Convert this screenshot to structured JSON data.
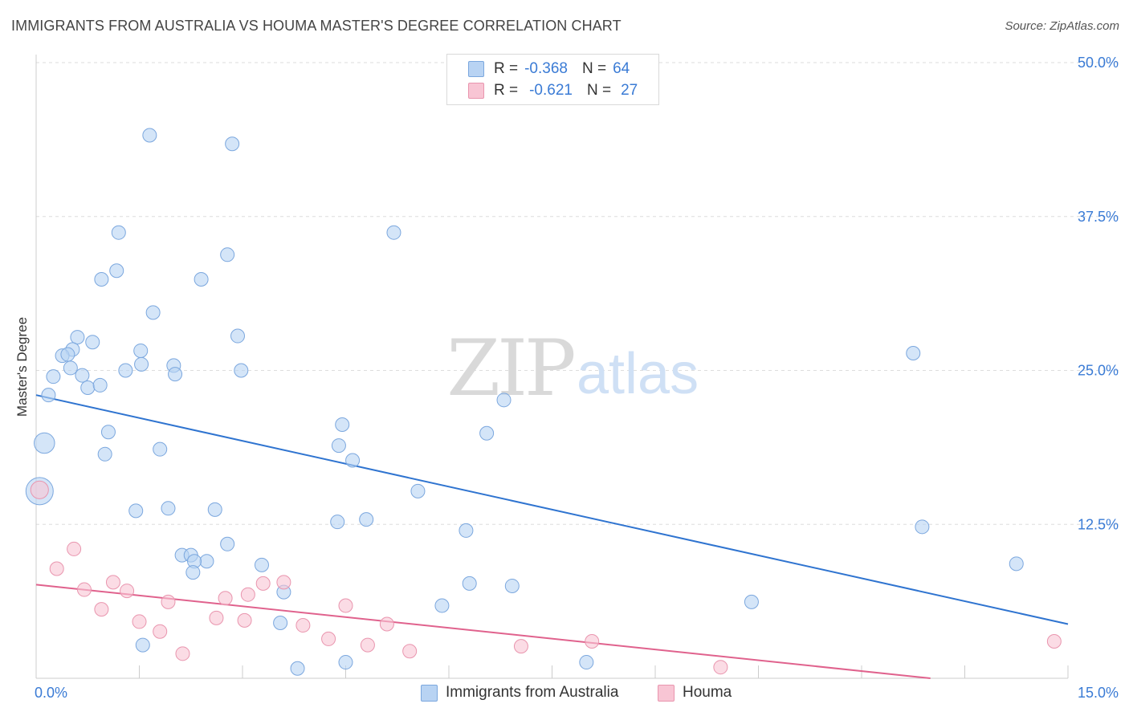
{
  "header": {
    "title": "IMMIGRANTS FROM AUSTRALIA VS HOUMA MASTER'S DEGREE CORRELATION CHART",
    "source": "Source: ZipAtlas.com"
  },
  "legend": {
    "series": [
      {
        "r_label": "R =",
        "r_value": "-0.368",
        "n_label": "N =",
        "n_value": "64"
      },
      {
        "r_label": "R =",
        "r_value": "-0.621",
        "n_label": "N =",
        "n_value": "27"
      }
    ]
  },
  "bottom_legend": {
    "items": [
      {
        "label": "Immigrants from Australia"
      },
      {
        "label": "Houma"
      }
    ]
  },
  "watermark": {
    "zip": "ZIP",
    "atlas": "atlas"
  },
  "colors": {
    "blue_fill": "#b8d3f3",
    "blue_stroke": "#7ba7de",
    "blue_line": "#2f74d0",
    "pink_fill": "#f8c5d4",
    "pink_stroke": "#e995ae",
    "pink_line": "#e0628d",
    "axis_label": "#3a7bd5",
    "grid": "#dddddd"
  },
  "chart_data": {
    "type": "scatter",
    "title": "IMMIGRANTS FROM AUSTRALIA VS HOUMA MASTER'S DEGREE CORRELATION CHART",
    "xlabel": "",
    "ylabel": "Master's Degree",
    "xlim": [
      0,
      15
    ],
    "ylim": [
      0,
      50
    ],
    "x_tick_labels": [
      "0.0%",
      "15.0%"
    ],
    "y_tick_values": [
      12.5,
      25.0,
      37.5,
      50.0
    ],
    "y_tick_labels": [
      "12.5%",
      "25.0%",
      "37.5%",
      "50.0%"
    ],
    "x_minor_ticks": [
      1.5,
      3.0,
      4.5,
      6.0,
      7.5,
      9.0,
      10.5,
      12.0,
      13.5,
      15.0
    ],
    "series": [
      {
        "name": "Immigrants from Australia",
        "color": "#b8d3f3",
        "points": [
          [
            1.65,
            44.1
          ],
          [
            2.85,
            43.4
          ],
          [
            1.2,
            36.2
          ],
          [
            2.78,
            34.4
          ],
          [
            5.2,
            36.2
          ],
          [
            0.95,
            32.4
          ],
          [
            1.17,
            33.1
          ],
          [
            2.4,
            32.4
          ],
          [
            1.7,
            29.7
          ],
          [
            0.6,
            27.7
          ],
          [
            0.82,
            27.3
          ],
          [
            1.52,
            26.6
          ],
          [
            2.93,
            27.8
          ],
          [
            0.53,
            26.7
          ],
          [
            0.38,
            26.2
          ],
          [
            0.46,
            26.3
          ],
          [
            1.53,
            25.5
          ],
          [
            1.3,
            25.0
          ],
          [
            2.0,
            25.4
          ],
          [
            2.98,
            25.0
          ],
          [
            0.5,
            25.2
          ],
          [
            0.67,
            24.6
          ],
          [
            0.25,
            24.5
          ],
          [
            2.02,
            24.7
          ],
          [
            0.75,
            23.6
          ],
          [
            0.93,
            23.8
          ],
          [
            0.18,
            23.0
          ],
          [
            6.8,
            22.6
          ],
          [
            12.75,
            26.4
          ],
          [
            4.45,
            20.6
          ],
          [
            1.05,
            20.0
          ],
          [
            6.55,
            19.9
          ],
          [
            0.12,
            19.1
          ],
          [
            4.4,
            18.9
          ],
          [
            1.8,
            18.6
          ],
          [
            1.0,
            18.2
          ],
          [
            4.6,
            17.7
          ],
          [
            0.05,
            15.2
          ],
          [
            5.55,
            15.2
          ],
          [
            1.45,
            13.6
          ],
          [
            1.92,
            13.8
          ],
          [
            2.6,
            13.7
          ],
          [
            4.38,
            12.7
          ],
          [
            4.8,
            12.9
          ],
          [
            12.88,
            12.3
          ],
          [
            6.25,
            12.0
          ],
          [
            2.78,
            10.9
          ],
          [
            2.12,
            10.0
          ],
          [
            2.25,
            10.0
          ],
          [
            2.48,
            9.5
          ],
          [
            2.3,
            9.5
          ],
          [
            3.28,
            9.2
          ],
          [
            14.25,
            9.3
          ],
          [
            2.28,
            8.6
          ],
          [
            6.3,
            7.7
          ],
          [
            6.92,
            7.5
          ],
          [
            3.6,
            7.0
          ],
          [
            10.4,
            6.2
          ],
          [
            5.9,
            5.9
          ],
          [
            3.55,
            4.5
          ],
          [
            1.55,
            2.7
          ],
          [
            3.8,
            0.8
          ],
          [
            4.5,
            1.3
          ],
          [
            8.0,
            1.3
          ]
        ],
        "sizes": [
          1,
          1,
          1,
          1,
          1,
          1,
          1,
          1,
          1,
          1,
          1,
          1,
          1,
          1,
          1,
          1,
          1,
          1,
          1,
          1,
          1,
          1,
          1,
          1,
          1,
          1,
          1,
          1,
          1,
          1,
          1,
          1,
          1.5,
          1,
          1,
          1,
          1,
          2,
          1,
          1,
          1,
          1,
          1,
          1,
          1,
          1,
          1,
          1,
          1,
          1,
          1,
          1,
          1,
          1,
          1,
          1,
          1,
          1,
          1,
          1,
          1,
          1,
          1,
          1
        ]
      },
      {
        "name": "Houma",
        "color": "#f8c5d4",
        "points": [
          [
            0.05,
            15.3
          ],
          [
            0.55,
            10.5
          ],
          [
            0.3,
            8.9
          ],
          [
            1.12,
            7.8
          ],
          [
            3.3,
            7.7
          ],
          [
            3.6,
            7.8
          ],
          [
            0.7,
            7.2
          ],
          [
            1.32,
            7.1
          ],
          [
            3.08,
            6.8
          ],
          [
            2.75,
            6.5
          ],
          [
            1.92,
            6.2
          ],
          [
            4.5,
            5.9
          ],
          [
            0.95,
            5.6
          ],
          [
            2.62,
            4.9
          ],
          [
            3.03,
            4.7
          ],
          [
            1.5,
            4.6
          ],
          [
            3.88,
            4.3
          ],
          [
            5.1,
            4.4
          ],
          [
            1.8,
            3.8
          ],
          [
            4.25,
            3.2
          ],
          [
            8.08,
            3.0
          ],
          [
            4.82,
            2.7
          ],
          [
            7.05,
            2.6
          ],
          [
            14.8,
            3.0
          ],
          [
            5.43,
            2.2
          ],
          [
            2.13,
            2.0
          ],
          [
            9.95,
            0.9
          ]
        ],
        "sizes": [
          1.3,
          1,
          1,
          1,
          1,
          1,
          1,
          1,
          1,
          1,
          1,
          1,
          1,
          1,
          1,
          1,
          1,
          1,
          1,
          1,
          1,
          1,
          1,
          1,
          1,
          1,
          1
        ]
      }
    ],
    "trendlines": [
      {
        "series": "Immigrants from Australia",
        "x": [
          0,
          15
        ],
        "y": [
          23.0,
          4.4
        ]
      },
      {
        "series": "Houma",
        "x": [
          0,
          13.0
        ],
        "y": [
          7.6,
          0.0
        ]
      }
    ]
  }
}
